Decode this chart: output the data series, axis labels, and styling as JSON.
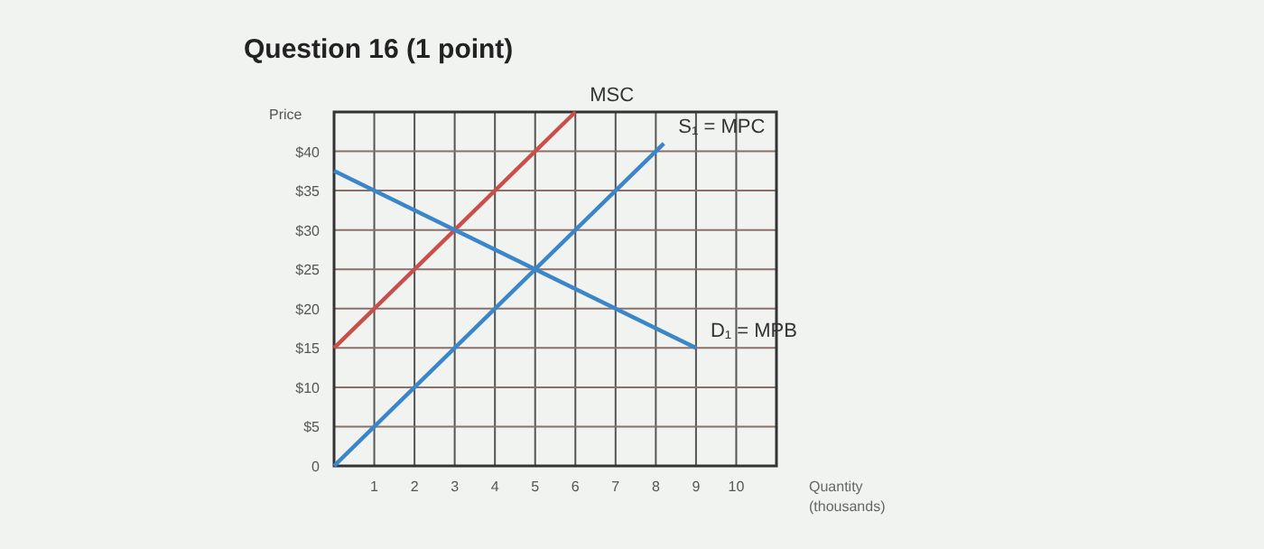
{
  "chart_data": {
    "type": "line",
    "title": "Question 16 (1 point)",
    "ylabel": "Price",
    "xlabel": "Quantity (thousands)",
    "xlim": [
      0,
      11
    ],
    "ylim": [
      0,
      45
    ],
    "xticks": [
      1,
      2,
      3,
      4,
      5,
      6,
      7,
      8,
      9,
      10
    ],
    "yticks": [
      {
        "value": 0,
        "label": "0"
      },
      {
        "value": 5,
        "label": "$5"
      },
      {
        "value": 10,
        "label": "$10"
      },
      {
        "value": 15,
        "label": "$15"
      },
      {
        "value": 20,
        "label": "$20"
      },
      {
        "value": 25,
        "label": "$25"
      },
      {
        "value": 30,
        "label": "$30"
      },
      {
        "value": 35,
        "label": "$35"
      },
      {
        "value": 40,
        "label": "$40"
      }
    ],
    "grid": true,
    "marker": "none",
    "line_style": "solid",
    "series": [
      {
        "name": "MSC",
        "color": "#c9504a",
        "x": [
          0,
          6
        ],
        "values": [
          15,
          45
        ]
      },
      {
        "name": "S₁ = MPC",
        "color": "#3a86c8",
        "x": [
          0,
          8.2
        ],
        "values": [
          0,
          41
        ]
      },
      {
        "name": "D₁ = MPB",
        "color": "#3a86c8",
        "x": [
          0,
          9
        ],
        "values": [
          37.5,
          15
        ]
      }
    ]
  }
}
